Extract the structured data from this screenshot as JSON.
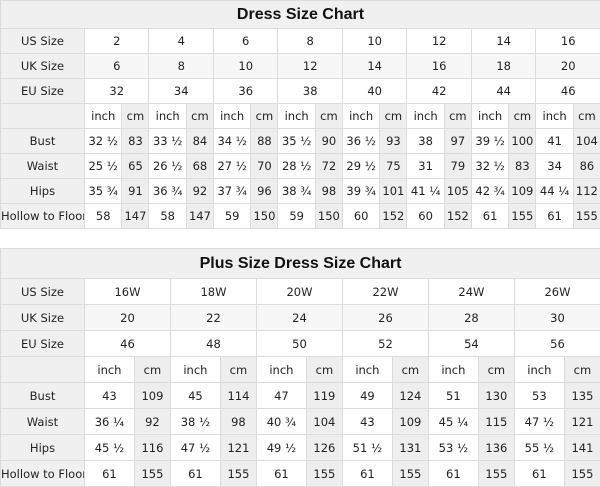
{
  "tables": [
    {
      "title": "Dress Size Chart",
      "labels": {
        "us": "US Size",
        "uk": "UK Size",
        "eu": "EU Size",
        "inch": "inch",
        "cm": "cm"
      },
      "us": [
        "2",
        "4",
        "6",
        "8",
        "10",
        "12",
        "14",
        "16"
      ],
      "uk": [
        "6",
        "8",
        "10",
        "12",
        "14",
        "16",
        "18",
        "20"
      ],
      "eu": [
        "32",
        "34",
        "36",
        "38",
        "40",
        "42",
        "44",
        "46"
      ],
      "measurements": [
        {
          "label": "Bust",
          "values": [
            [
              "32 ½",
              "83"
            ],
            [
              "33 ½",
              "84"
            ],
            [
              "34 ½",
              "88"
            ],
            [
              "35 ½",
              "90"
            ],
            [
              "36 ½",
              "93"
            ],
            [
              "38",
              "97"
            ],
            [
              "39 ½",
              "100"
            ],
            [
              "41",
              "104"
            ]
          ]
        },
        {
          "label": "Waist",
          "values": [
            [
              "25 ½",
              "65"
            ],
            [
              "26 ½",
              "68"
            ],
            [
              "27 ½",
              "70"
            ],
            [
              "28 ½",
              "72"
            ],
            [
              "29 ½",
              "75"
            ],
            [
              "31",
              "79"
            ],
            [
              "32 ½",
              "83"
            ],
            [
              "34",
              "86"
            ]
          ]
        },
        {
          "label": "Hips",
          "values": [
            [
              "35 ¾",
              "91"
            ],
            [
              "36 ¾",
              "92"
            ],
            [
              "37 ¾",
              "96"
            ],
            [
              "38 ¾",
              "98"
            ],
            [
              "39 ¾",
              "101"
            ],
            [
              "41 ¼",
              "105"
            ],
            [
              "42 ¾",
              "109"
            ],
            [
              "44 ¼",
              "112"
            ]
          ]
        },
        {
          "label": "Hollow to Floor",
          "values": [
            [
              "58",
              "147"
            ],
            [
              "58",
              "147"
            ],
            [
              "59",
              "150"
            ],
            [
              "59",
              "150"
            ],
            [
              "60",
              "152"
            ],
            [
              "60",
              "152"
            ],
            [
              "61",
              "155"
            ],
            [
              "61",
              "155"
            ]
          ]
        }
      ]
    },
    {
      "title": "Plus Size Dress Size Chart",
      "labels": {
        "us": "US Size",
        "uk": "UK Size",
        "eu": "EU Size",
        "inch": "inch",
        "cm": "cm"
      },
      "us": [
        "16W",
        "18W",
        "20W",
        "22W",
        "24W",
        "26W"
      ],
      "uk": [
        "20",
        "22",
        "24",
        "26",
        "28",
        "30"
      ],
      "eu": [
        "46",
        "48",
        "50",
        "52",
        "54",
        "56"
      ],
      "measurements": [
        {
          "label": "Bust",
          "values": [
            [
              "43",
              "109"
            ],
            [
              "45",
              "114"
            ],
            [
              "47",
              "119"
            ],
            [
              "49",
              "124"
            ],
            [
              "51",
              "130"
            ],
            [
              "53",
              "135"
            ]
          ]
        },
        {
          "label": "Waist",
          "values": [
            [
              "36 ¼",
              "92"
            ],
            [
              "38 ½",
              "98"
            ],
            [
              "40 ¾",
              "104"
            ],
            [
              "43",
              "109"
            ],
            [
              "45 ¼",
              "115"
            ],
            [
              "47 ½",
              "121"
            ]
          ]
        },
        {
          "label": "Hips",
          "values": [
            [
              "45 ½",
              "116"
            ],
            [
              "47 ½",
              "121"
            ],
            [
              "49 ½",
              "126"
            ],
            [
              "51 ½",
              "131"
            ],
            [
              "53 ½",
              "136"
            ],
            [
              "55 ½",
              "141"
            ]
          ]
        },
        {
          "label": "Hollow to Floor",
          "values": [
            [
              "61",
              "155"
            ],
            [
              "61",
              "155"
            ],
            [
              "61",
              "155"
            ],
            [
              "61",
              "155"
            ],
            [
              "61",
              "155"
            ],
            [
              "61",
              "155"
            ]
          ]
        }
      ]
    }
  ]
}
